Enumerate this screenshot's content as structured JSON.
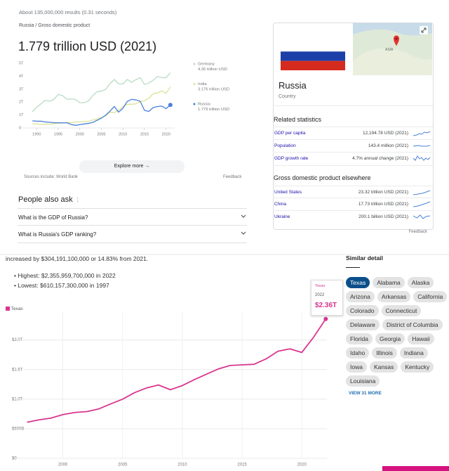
{
  "search": {
    "result_stats": "About 135,000,000 results (0.31 seconds)",
    "breadcrumb": [
      "Russia",
      "Gross domestic product"
    ],
    "headline": "1.779 trillion USD (2021)",
    "explore": "Explore more",
    "sources": "Sources include: World Bank",
    "feedback": "Feedback"
  },
  "chart_data": [
    {
      "type": "line",
      "x": [
        1989,
        1990,
        1991,
        1992,
        1993,
        1994,
        1995,
        1996,
        1997,
        1998,
        1999,
        2000,
        2001,
        2002,
        2003,
        2004,
        2005,
        2006,
        2007,
        2008,
        2009,
        2010,
        2011,
        2012,
        2013,
        2014,
        2015,
        2016,
        2017,
        2018,
        2019,
        2020,
        2021
      ],
      "series": [
        {
          "name": "Germany",
          "legend_label": "4.26 trillion USD",
          "color": "#b9dcc4",
          "values": [
            1.25,
            1.6,
            1.87,
            2.13,
            2.07,
            2.21,
            2.59,
            2.5,
            2.22,
            2.24,
            2.2,
            1.95,
            1.95,
            2.08,
            2.5,
            2.81,
            2.85,
            2.99,
            3.43,
            3.75,
            3.41,
            3.4,
            3.75,
            3.53,
            3.73,
            3.89,
            3.36,
            3.47,
            3.69,
            3.98,
            3.89,
            3.89,
            4.26
          ]
        },
        {
          "name": "India",
          "legend_label": "3.176 trillion USD",
          "color": "#dbe394",
          "values": [
            0.3,
            0.32,
            0.27,
            0.29,
            0.28,
            0.33,
            0.36,
            0.39,
            0.42,
            0.42,
            0.46,
            0.47,
            0.49,
            0.51,
            0.61,
            0.71,
            0.82,
            0.94,
            1.22,
            1.2,
            1.34,
            1.68,
            1.82,
            1.83,
            1.86,
            2.04,
            2.1,
            2.29,
            2.65,
            2.7,
            2.87,
            2.67,
            3.176
          ]
        },
        {
          "name": "Russia",
          "legend_label": "1.779 trillion USD",
          "color": "#4a80d9",
          "values": [
            0.55,
            0.52,
            0.52,
            0.46,
            0.44,
            0.4,
            0.4,
            0.39,
            0.4,
            0.27,
            0.2,
            0.26,
            0.31,
            0.35,
            0.43,
            0.59,
            0.76,
            0.99,
            1.3,
            1.66,
            1.22,
            1.52,
            2.05,
            2.21,
            2.17,
            2.06,
            1.36,
            1.28,
            1.57,
            1.66,
            1.69,
            1.49,
            1.779
          ]
        }
      ],
      "xlim": [
        1988,
        2022
      ],
      "xticks": [
        1990,
        1995,
        2000,
        2005,
        2010,
        2015,
        2020
      ],
      "ylim": [
        0,
        5
      ],
      "yticks": [
        0,
        {
          "value": 1,
          "label": "1T"
        },
        {
          "value": 2,
          "label": "2T"
        },
        {
          "value": 3,
          "label": "3T"
        },
        {
          "value": 4,
          "label": "4T"
        },
        {
          "value": 5,
          "label": "5T"
        }
      ],
      "grid": false,
      "end_marker": true
    },
    {
      "type": "line",
      "x": [
        1997,
        1998,
        1999,
        2000,
        2001,
        2002,
        2003,
        2004,
        2005,
        2006,
        2007,
        2008,
        2009,
        2010,
        2011,
        2012,
        2013,
        2014,
        2015,
        2016,
        2017,
        2018,
        2019,
        2020,
        2021,
        2022
      ],
      "series": [
        {
          "name": "Texas",
          "color": "#d9368f",
          "values": [
            610157300000,
            650000000000,
            680000000000,
            740000000000,
            775000000000,
            790000000000,
            835000000000,
            920000000000,
            1000000000000,
            1110000000000,
            1190000000000,
            1240000000000,
            1160000000000,
            1230000000000,
            1330000000000,
            1420000000000,
            1510000000000,
            1570000000000,
            1580000000000,
            1590000000000,
            1680000000000,
            1810000000000,
            1850000000000,
            1790000000000,
            2051768600000,
            2355959700000
          ],
          "value_labels": [
            null,
            null,
            null,
            null,
            null,
            null,
            null,
            null,
            null,
            null,
            null,
            null,
            null,
            null,
            null,
            null,
            null,
            null,
            null,
            null,
            null,
            null,
            null,
            null,
            null,
            "$2.36T"
          ]
        }
      ],
      "xlim": [
        1996.5,
        2022.1
      ],
      "xticks": [
        2000,
        2005,
        2010,
        2015,
        2020
      ],
      "ylim": [
        0,
        2400000000000
      ],
      "yticks": [
        {
          "value": 0,
          "label": "$0"
        },
        {
          "value": 500000000000,
          "label": "$500B"
        },
        {
          "value": 1000000000000,
          "label": "$1.0T"
        },
        {
          "value": 1500000000000,
          "label": "$1.5T"
        },
        {
          "value": 2000000000000,
          "label": "$2.0T"
        }
      ],
      "grid": true,
      "end_marker": true
    }
  ],
  "people_also_ask": {
    "title": "People also ask",
    "questions": [
      "What is the GDP of Russia?",
      "What is Russia's GDP ranking?"
    ]
  },
  "knowledge_panel": {
    "title": "Russia",
    "subtitle": "Country",
    "map_label": "ASIA",
    "related_title": "Related statistics",
    "related": [
      {
        "label": "GDP per capita",
        "value": "12,194.78 USD (2021)"
      },
      {
        "label": "Population",
        "value": "143.4 million (2021)"
      },
      {
        "label": "GDP growth rate",
        "value": "4.7% annual change (2021)"
      }
    ],
    "elsewhere_title": "Gross domestic product elsewhere",
    "elsewhere": [
      {
        "label": "United States",
        "value": "23.32 trillion USD (2021)"
      },
      {
        "label": "China",
        "value": "17.73 trillion USD (2021)"
      },
      {
        "label": "Ukraine",
        "value": "200.1 billion USD (2021)"
      }
    ],
    "feedback": "Feedback"
  },
  "texas_page": {
    "intro": "increased by $304,191,100,000 or 14.83% from 2021.",
    "bullets": [
      "Highest: $2,355,959,700,000 in 2022",
      "Lowest: $610,157,300,000 in 1997"
    ],
    "similar_title": "Similar detail",
    "states": [
      "Texas",
      "Alabama",
      "Alaska",
      "Arizona",
      "Arkansas",
      "California",
      "Colorado",
      "Connecticut",
      "Delaware",
      "District of Columbia",
      "Florida",
      "Georgia",
      "Hawaii",
      "Idaho",
      "Illinois",
      "Indiana",
      "Iowa",
      "Kansas",
      "Kentucky",
      "Louisiana"
    ],
    "more": "VIEW 31 MORE"
  }
}
